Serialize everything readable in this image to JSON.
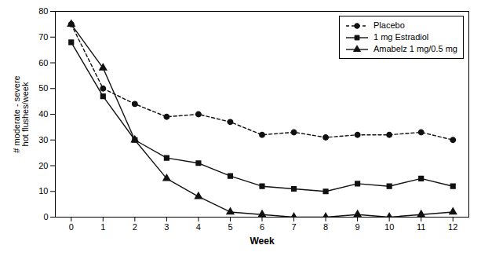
{
  "chart_data": {
    "type": "line",
    "xlabel": "Week",
    "ylabel": "# moderate - severe\nhot flushes/week",
    "x": [
      0,
      1,
      2,
      3,
      4,
      5,
      6,
      7,
      8,
      9,
      10,
      11,
      12
    ],
    "series": [
      {
        "name": "Placebo",
        "color": "#111111",
        "marker": "circle",
        "line_style": "dashed",
        "values": [
          75,
          50,
          44,
          39,
          40,
          37,
          32,
          33,
          31,
          32,
          32,
          33,
          30
        ]
      },
      {
        "name": "1 mg Estradiol",
        "color": "#111111",
        "marker": "square",
        "line_style": "solid",
        "values": [
          68,
          47,
          30,
          23,
          21,
          16,
          12,
          11,
          10,
          13,
          12,
          15,
          12
        ]
      },
      {
        "name": "Amabelz 1 mg/0.5 mg",
        "color": "#111111",
        "marker": "triangle",
        "line_style": "solid",
        "values": [
          75,
          58,
          30,
          15,
          8,
          2,
          1,
          0,
          0,
          1,
          0,
          1,
          2
        ]
      }
    ],
    "xlim": [
      -0.5,
      12.5
    ],
    "xticks": [
      0,
      1,
      2,
      3,
      4,
      5,
      6,
      7,
      8,
      9,
      10,
      11,
      12
    ],
    "ylim": [
      0,
      80
    ],
    "yticks": [
      0,
      10,
      20,
      30,
      40,
      50,
      60,
      70,
      80
    ],
    "grid": false,
    "legend": "upper right"
  }
}
